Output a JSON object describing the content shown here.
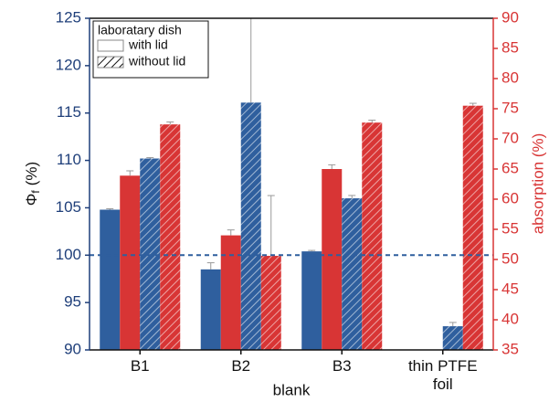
{
  "chart_data": {
    "type": "bar",
    "categories": [
      "B1",
      "B2",
      "B3",
      "thin PTFE foil"
    ],
    "series": [
      {
        "color": "#2f5f9e",
        "hatch": false,
        "values": [
          104.8,
          98.5,
          100.4,
          null
        ],
        "errors": [
          0.1,
          0.7,
          0.1,
          null
        ]
      },
      {
        "color": "#d83535",
        "hatch": false,
        "axis": "y2",
        "values": [
          63.9,
          54.0,
          65.0,
          null
        ],
        "errors": [
          0.8,
          0.9,
          0.7,
          null
        ]
      },
      {
        "color": "#2f5f9e",
        "hatch": true,
        "values": [
          110.2,
          116.1,
          106.0,
          92.5
        ],
        "errors": [
          0.1,
          12,
          0.3,
          0.4
        ]
      },
      {
        "color": "#d83535",
        "hatch": true,
        "axis": "y2",
        "values": [
          72.4,
          50.6,
          72.7,
          75.5
        ],
        "errors": [
          0.4,
          10,
          0.4,
          0.4
        ]
      }
    ],
    "ylim": [
      90,
      125
    ],
    "yticks": [
      90,
      95,
      100,
      105,
      110,
      115,
      120,
      125
    ],
    "y2lim": [
      35,
      90
    ],
    "y2ticks": [
      35,
      40,
      45,
      50,
      55,
      60,
      65,
      70,
      75,
      80,
      85,
      90
    ],
    "ylabel": [
      "Φ",
      "f",
      "(%)"
    ],
    "y2label": "absorption (%)",
    "xlabel": "blank",
    "ycolor": "#1f3f7a",
    "y2color": "#d83535",
    "legend": {
      "title": "laboratary dish",
      "position": "upper left",
      "entries": [
        {
          "label": "with lid",
          "hatch": false
        },
        {
          "label": "without lid",
          "hatch": true
        }
      ]
    },
    "ref_line": {
      "value": 100,
      "color": "#2f5f9e",
      "style": "dashed"
    }
  }
}
